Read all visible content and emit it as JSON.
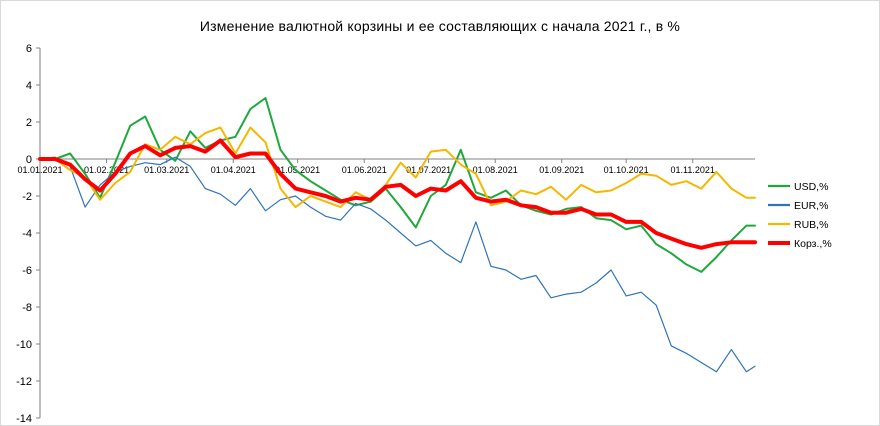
{
  "chart_data": {
    "type": "line",
    "title": "Изменение валютной корзины и ее составляющих с начала 2021 г., в %",
    "xlabel": "",
    "ylabel": "",
    "ylim": [
      -14,
      6
    ],
    "yticks": [
      6,
      4,
      2,
      0,
      -2,
      -4,
      -6,
      -8,
      -10,
      -12,
      -14
    ],
    "xlim": [
      "2021-01-01",
      "2021-11-30"
    ],
    "xticks": [
      "01.01.2021",
      "01.02.2021",
      "01.03.2021",
      "01.04.2021",
      "01.05.2021",
      "01.06.2021",
      "01.07.2021",
      "01.08.2021",
      "01.09.2021",
      "01.10.2021",
      "01.11.2021"
    ],
    "grid": false,
    "legend": "right",
    "series": [
      {
        "name": "USD,%",
        "color": "#1fa83c",
        "x": [
          "2021-01-01",
          "2021-01-08",
          "2021-01-15",
          "2021-01-22",
          "2021-01-29",
          "2021-02-05",
          "2021-02-12",
          "2021-02-19",
          "2021-02-26",
          "2021-03-05",
          "2021-03-12",
          "2021-03-19",
          "2021-03-26",
          "2021-04-02",
          "2021-04-09",
          "2021-04-16",
          "2021-04-23",
          "2021-04-30",
          "2021-05-07",
          "2021-05-14",
          "2021-05-21",
          "2021-05-28",
          "2021-06-04",
          "2021-06-11",
          "2021-06-18",
          "2021-06-25",
          "2021-07-02",
          "2021-07-09",
          "2021-07-16",
          "2021-07-23",
          "2021-07-30",
          "2021-08-06",
          "2021-08-13",
          "2021-08-20",
          "2021-08-27",
          "2021-09-03",
          "2021-09-10",
          "2021-09-17",
          "2021-09-24",
          "2021-10-01",
          "2021-10-08",
          "2021-10-15",
          "2021-10-22",
          "2021-10-29",
          "2021-11-05",
          "2021-11-12",
          "2021-11-19",
          "2021-11-26",
          "2021-11-30"
        ],
        "values": [
          0,
          0,
          0.3,
          -0.8,
          -2.1,
          -0.2,
          1.8,
          2.3,
          0.5,
          -0.1,
          1.5,
          0.6,
          1.0,
          1.2,
          2.7,
          3.3,
          0.5,
          -0.6,
          -1.2,
          -1.7,
          -2.2,
          -2.5,
          -2.3,
          -1.6,
          -2.6,
          -3.7,
          -2.0,
          -1.4,
          0.5,
          -1.8,
          -2.1,
          -1.7,
          -2.5,
          -2.8,
          -3.0,
          -2.7,
          -2.6,
          -3.2,
          -3.3,
          -3.8,
          -3.6,
          -4.6,
          -5.1,
          -5.7,
          -6.1,
          -5.3,
          -4.4,
          -3.6,
          -3.6
        ]
      },
      {
        "name": "EUR,%",
        "color": "#2f73b8",
        "x": [
          "2021-01-01",
          "2021-01-08",
          "2021-01-15",
          "2021-01-22",
          "2021-01-29",
          "2021-02-05",
          "2021-02-12",
          "2021-02-19",
          "2021-02-26",
          "2021-03-05",
          "2021-03-12",
          "2021-03-19",
          "2021-03-26",
          "2021-04-02",
          "2021-04-09",
          "2021-04-16",
          "2021-04-23",
          "2021-04-30",
          "2021-05-07",
          "2021-05-14",
          "2021-05-21",
          "2021-05-28",
          "2021-06-04",
          "2021-06-11",
          "2021-06-18",
          "2021-06-25",
          "2021-07-02",
          "2021-07-09",
          "2021-07-16",
          "2021-07-23",
          "2021-07-30",
          "2021-08-06",
          "2021-08-13",
          "2021-08-20",
          "2021-08-27",
          "2021-09-03",
          "2021-09-10",
          "2021-09-17",
          "2021-09-24",
          "2021-10-01",
          "2021-10-08",
          "2021-10-15",
          "2021-10-22",
          "2021-10-29",
          "2021-11-05",
          "2021-11-12",
          "2021-11-19",
          "2021-11-26",
          "2021-11-30"
        ],
        "values": [
          0,
          0.1,
          -0.4,
          -2.6,
          -1.4,
          -0.7,
          -0.4,
          -0.2,
          -0.3,
          0.1,
          -0.4,
          -1.6,
          -1.9,
          -2.5,
          -1.6,
          -2.8,
          -2.2,
          -2.0,
          -2.6,
          -3.1,
          -3.3,
          -2.4,
          -2.7,
          -3.3,
          -4.0,
          -4.7,
          -4.4,
          -5.1,
          -5.6,
          -3.4,
          -5.8,
          -6.0,
          -6.5,
          -6.3,
          -7.5,
          -7.3,
          -7.2,
          -6.7,
          -6.0,
          -7.4,
          -7.2,
          -7.9,
          -10.1,
          -10.5,
          -11.0,
          -11.5,
          -10.3,
          -11.5,
          -11.2
        ]
      },
      {
        "name": "RUB,%",
        "color": "#f4b800",
        "x": [
          "2021-01-01",
          "2021-01-08",
          "2021-01-15",
          "2021-01-22",
          "2021-01-29",
          "2021-02-05",
          "2021-02-12",
          "2021-02-19",
          "2021-02-26",
          "2021-03-05",
          "2021-03-12",
          "2021-03-19",
          "2021-03-26",
          "2021-04-02",
          "2021-04-09",
          "2021-04-16",
          "2021-04-23",
          "2021-04-30",
          "2021-05-07",
          "2021-05-14",
          "2021-05-21",
          "2021-05-28",
          "2021-06-04",
          "2021-06-11",
          "2021-06-18",
          "2021-06-25",
          "2021-07-02",
          "2021-07-09",
          "2021-07-16",
          "2021-07-23",
          "2021-07-30",
          "2021-08-06",
          "2021-08-13",
          "2021-08-20",
          "2021-08-27",
          "2021-09-03",
          "2021-09-10",
          "2021-09-17",
          "2021-09-24",
          "2021-10-01",
          "2021-10-08",
          "2021-10-15",
          "2021-10-22",
          "2021-10-29",
          "2021-11-05",
          "2021-11-12",
          "2021-11-19",
          "2021-11-26",
          "2021-11-30"
        ],
        "values": [
          0,
          0,
          -0.6,
          -1.0,
          -2.2,
          -1.3,
          -0.7,
          0.8,
          0.5,
          1.2,
          0.8,
          1.4,
          1.7,
          0.3,
          1.7,
          0.9,
          -1.6,
          -2.6,
          -2.0,
          -2.3,
          -2.6,
          -1.8,
          -2.2,
          -1.4,
          -0.2,
          -1.0,
          0.4,
          0.5,
          -0.3,
          -0.8,
          -2.5,
          -2.3,
          -1.7,
          -1.9,
          -1.5,
          -2.2,
          -1.4,
          -1.8,
          -1.7,
          -1.3,
          -0.8,
          -0.9,
          -1.4,
          -1.2,
          -1.6,
          -0.7,
          -1.6,
          -2.1,
          -2.1
        ]
      },
      {
        "name": "Корз.,%",
        "color": "#ff0000",
        "x": [
          "2021-01-01",
          "2021-01-08",
          "2021-01-15",
          "2021-01-22",
          "2021-01-29",
          "2021-02-05",
          "2021-02-12",
          "2021-02-19",
          "2021-02-26",
          "2021-03-05",
          "2021-03-12",
          "2021-03-19",
          "2021-03-26",
          "2021-04-02",
          "2021-04-09",
          "2021-04-16",
          "2021-04-23",
          "2021-04-30",
          "2021-05-07",
          "2021-05-14",
          "2021-05-21",
          "2021-05-28",
          "2021-06-04",
          "2021-06-11",
          "2021-06-18",
          "2021-06-25",
          "2021-07-02",
          "2021-07-09",
          "2021-07-16",
          "2021-07-23",
          "2021-07-30",
          "2021-08-06",
          "2021-08-13",
          "2021-08-20",
          "2021-08-27",
          "2021-09-03",
          "2021-09-10",
          "2021-09-17",
          "2021-09-24",
          "2021-10-01",
          "2021-10-08",
          "2021-10-15",
          "2021-10-22",
          "2021-10-29",
          "2021-11-05",
          "2021-11-12",
          "2021-11-19",
          "2021-11-26",
          "2021-11-30"
        ],
        "values": [
          0,
          0,
          -0.3,
          -1.1,
          -1.7,
          -0.8,
          0.3,
          0.7,
          0.2,
          0.6,
          0.7,
          0.4,
          1.0,
          0.1,
          0.3,
          0.3,
          -0.8,
          -1.6,
          -1.8,
          -2.0,
          -2.3,
          -2.1,
          -2.2,
          -1.5,
          -1.4,
          -2.0,
          -1.6,
          -1.7,
          -1.2,
          -2.1,
          -2.3,
          -2.2,
          -2.5,
          -2.6,
          -2.9,
          -2.9,
          -2.7,
          -3.0,
          -3.0,
          -3.4,
          -3.4,
          -4.0,
          -4.3,
          -4.6,
          -4.8,
          -4.6,
          -4.5,
          -4.5,
          -4.5
        ]
      }
    ]
  }
}
